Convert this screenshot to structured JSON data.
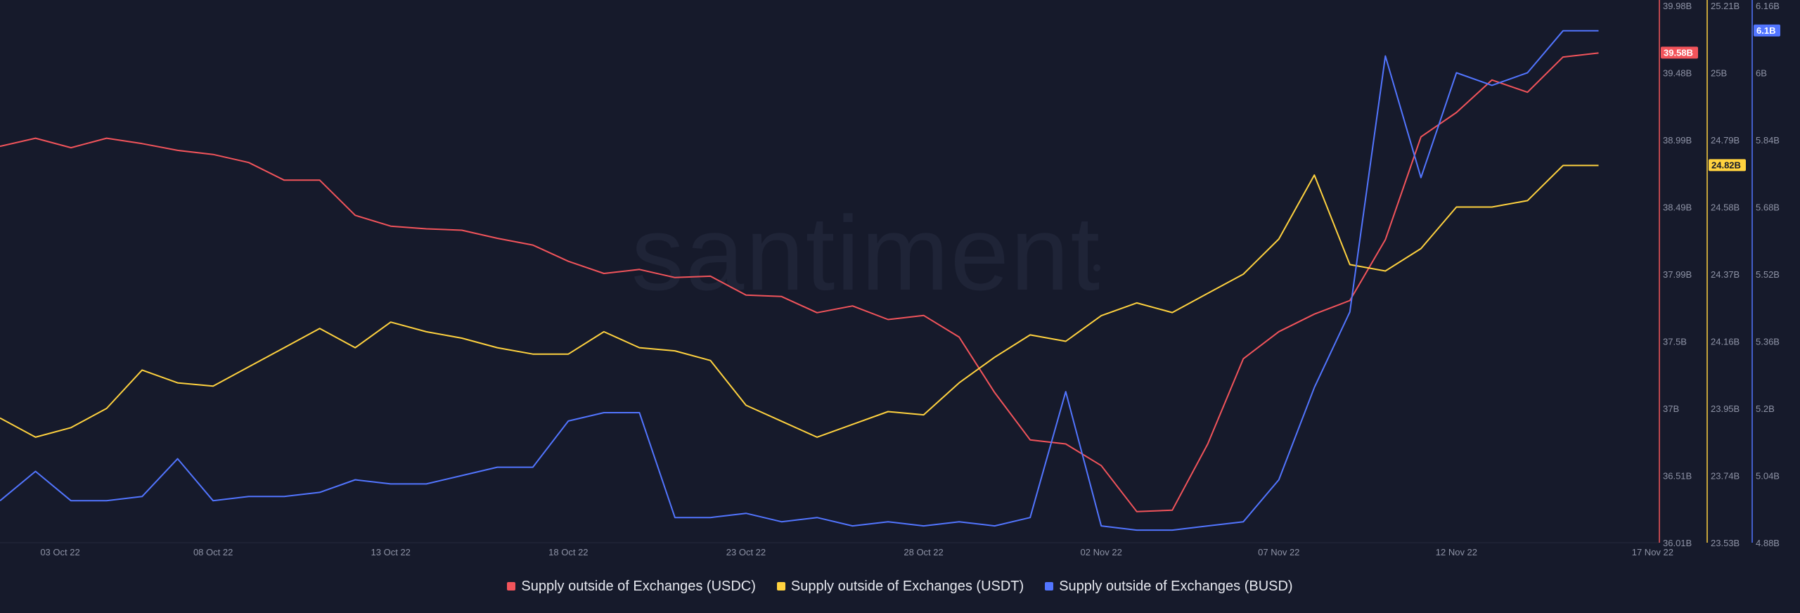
{
  "watermark": "santiment",
  "chart_data": {
    "type": "line",
    "x_ticks": [
      "03 Oct 22",
      "08 Oct 22",
      "13 Oct 22",
      "18 Oct 22",
      "23 Oct 22",
      "28 Oct 22",
      "02 Nov 22",
      "07 Nov 22",
      "12 Nov 22",
      "17 Nov 22"
    ],
    "x": [
      "02 Oct 22",
      "03 Oct 22",
      "04 Oct 22",
      "05 Oct 22",
      "06 Oct 22",
      "07 Oct 22",
      "08 Oct 22",
      "09 Oct 22",
      "10 Oct 22",
      "11 Oct 22",
      "12 Oct 22",
      "13 Oct 22",
      "14 Oct 22",
      "15 Oct 22",
      "16 Oct 22",
      "17 Oct 22",
      "18 Oct 22",
      "19 Oct 22",
      "20 Oct 22",
      "21 Oct 22",
      "22 Oct 22",
      "23 Oct 22",
      "24 Oct 22",
      "25 Oct 22",
      "26 Oct 22",
      "27 Oct 22",
      "28 Oct 22",
      "29 Oct 22",
      "30 Oct 22",
      "31 Oct 22",
      "01 Nov 22",
      "02 Nov 22",
      "03 Nov 22",
      "04 Nov 22",
      "05 Nov 22",
      "06 Nov 22",
      "07 Nov 22",
      "08 Nov 22",
      "09 Nov 22",
      "10 Nov 22",
      "11 Nov 22",
      "12 Nov 22",
      "13 Nov 22",
      "14 Nov 22",
      "15 Nov 22",
      "16 Nov 22",
      "17 Nov 22"
    ],
    "series": [
      {
        "name": "Supply outside of Exchanges (USDC)",
        "color": "#f2545b",
        "axis": "usdc",
        "last_value_label": "39.58B",
        "values": [
          38.94,
          39.0,
          38.93,
          39.0,
          38.96,
          38.91,
          38.88,
          38.82,
          38.69,
          38.69,
          38.43,
          38.35,
          38.33,
          38.32,
          38.26,
          38.21,
          38.09,
          38.0,
          38.03,
          37.97,
          37.98,
          37.84,
          37.83,
          37.71,
          37.76,
          37.66,
          37.69,
          37.53,
          37.12,
          36.77,
          36.74,
          36.58,
          36.24,
          36.25,
          36.74,
          37.37,
          37.57,
          37.7,
          37.8,
          38.25,
          39.01,
          39.19,
          39.43,
          39.34,
          39.6,
          39.63,
          null
        ]
      },
      {
        "name": "Supply outside of Exchanges (USDT)",
        "color": "#ffd23f",
        "axis": "usdt",
        "last_value_label": "24.82B",
        "values": [
          23.92,
          23.86,
          23.89,
          23.95,
          24.07,
          24.03,
          24.02,
          24.08,
          24.14,
          24.2,
          24.14,
          24.22,
          24.19,
          24.17,
          24.14,
          24.12,
          24.12,
          24.19,
          24.14,
          24.13,
          24.1,
          23.96,
          23.91,
          23.86,
          23.9,
          23.94,
          23.93,
          24.03,
          24.11,
          24.18,
          24.16,
          24.24,
          24.28,
          24.25,
          24.31,
          24.37,
          24.48,
          24.68,
          24.4,
          24.38,
          24.45,
          24.58,
          24.58,
          24.6,
          24.71,
          24.71,
          null
        ]
      },
      {
        "name": "Supply outside of Exchanges (BUSD)",
        "color": "#5275ff",
        "axis": "busd",
        "last_value_label": "6.1B",
        "values": [
          4.98,
          5.05,
          4.98,
          4.98,
          4.99,
          5.08,
          4.98,
          4.99,
          4.99,
          5.0,
          5.03,
          5.02,
          5.02,
          5.04,
          5.06,
          5.06,
          5.17,
          5.19,
          5.19,
          4.94,
          4.94,
          4.95,
          4.93,
          4.94,
          4.92,
          4.93,
          4.92,
          4.93,
          4.92,
          4.94,
          5.24,
          4.92,
          4.91,
          4.91,
          4.92,
          4.93,
          5.03,
          5.25,
          5.43,
          6.04,
          5.75,
          6.0,
          5.97,
          6.0,
          6.1,
          6.1,
          null
        ]
      }
    ],
    "axes": {
      "usdc": {
        "ticks": [
          "39.98B",
          "39.48B",
          "38.99B",
          "38.49B",
          "37.99B",
          "37.5B",
          "37B",
          "36.51B",
          "36.01B"
        ],
        "range": [
          36.01,
          39.98
        ]
      },
      "usdt": {
        "ticks": [
          "25.21B",
          "25B",
          "24.79B",
          "24.58B",
          "24.37B",
          "24.16B",
          "23.95B",
          "23.74B",
          "23.53B"
        ],
        "range": [
          23.53,
          25.21
        ]
      },
      "busd": {
        "ticks": [
          "6.16B",
          "6B",
          "5.84B",
          "5.68B",
          "5.52B",
          "5.36B",
          "5.2B",
          "5.04B",
          "4.88B"
        ],
        "range": [
          4.88,
          6.16
        ]
      }
    }
  }
}
